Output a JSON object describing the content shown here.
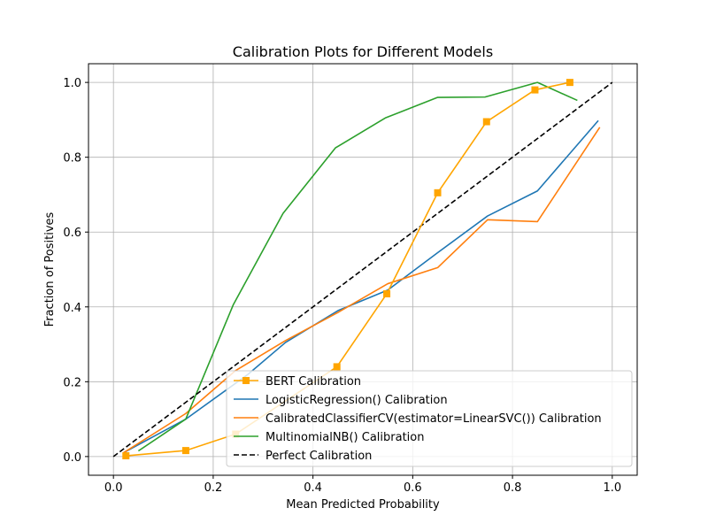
{
  "chart_data": {
    "type": "line",
    "title": "Calibration Plots for Different Models",
    "xlabel": "Mean Predicted Probability",
    "ylabel": "Fraction of Positives",
    "xlim": [
      -0.05,
      1.05
    ],
    "ylim": [
      -0.05,
      1.05
    ],
    "xticks": [
      0.0,
      0.2,
      0.4,
      0.6,
      0.8,
      1.0
    ],
    "yticks": [
      0.0,
      0.2,
      0.4,
      0.6,
      0.8,
      1.0
    ],
    "xtick_labels": [
      "0.0",
      "0.2",
      "0.4",
      "0.6",
      "0.8",
      "1.0"
    ],
    "ytick_labels": [
      "0.0",
      "0.2",
      "0.4",
      "0.6",
      "0.8",
      "1.0"
    ],
    "grid": true,
    "legend_position": "lower right",
    "series": [
      {
        "name": "BERT Calibration",
        "color": "#ffa500",
        "style": "solid",
        "marker": "square",
        "x": [
          0.025,
          0.145,
          0.245,
          0.448,
          0.548,
          0.65,
          0.748,
          0.845,
          0.915
        ],
        "y": [
          0.002,
          0.016,
          0.06,
          0.24,
          0.435,
          0.705,
          0.895,
          0.98,
          1.0
        ]
      },
      {
        "name": "LogisticRegression() Calibration",
        "color": "#1f77b4",
        "style": "solid",
        "marker": "none",
        "x": [
          0.02,
          0.145,
          0.27,
          0.345,
          0.45,
          0.55,
          0.65,
          0.75,
          0.85,
          0.972
        ],
        "y": [
          0.01,
          0.1,
          0.22,
          0.305,
          0.39,
          0.445,
          0.545,
          0.643,
          0.71,
          0.898
        ]
      },
      {
        "name": "CalibratedClassifierCV(estimator=LinearSVC()) Calibration",
        "color": "#ff7f0e",
        "style": "solid",
        "marker": "none",
        "x": [
          0.02,
          0.145,
          0.245,
          0.345,
          0.45,
          0.55,
          0.65,
          0.75,
          0.85,
          0.975
        ],
        "y": [
          0.01,
          0.115,
          0.23,
          0.31,
          0.385,
          0.462,
          0.505,
          0.633,
          0.628,
          0.88
        ]
      },
      {
        "name": "MultinomialNB() Calibration",
        "color": "#2ca02c",
        "style": "solid",
        "marker": "none",
        "x": [
          0.05,
          0.145,
          0.24,
          0.34,
          0.445,
          0.545,
          0.65,
          0.745,
          0.85,
          0.93
        ],
        "y": [
          0.015,
          0.1,
          0.405,
          0.65,
          0.825,
          0.905,
          0.96,
          0.961,
          1.0,
          0.952
        ]
      },
      {
        "name": "Perfect Calibration",
        "color": "#000000",
        "style": "dashed",
        "marker": "none",
        "x": [
          0.0,
          1.0
        ],
        "y": [
          0.0,
          1.0
        ]
      }
    ]
  }
}
